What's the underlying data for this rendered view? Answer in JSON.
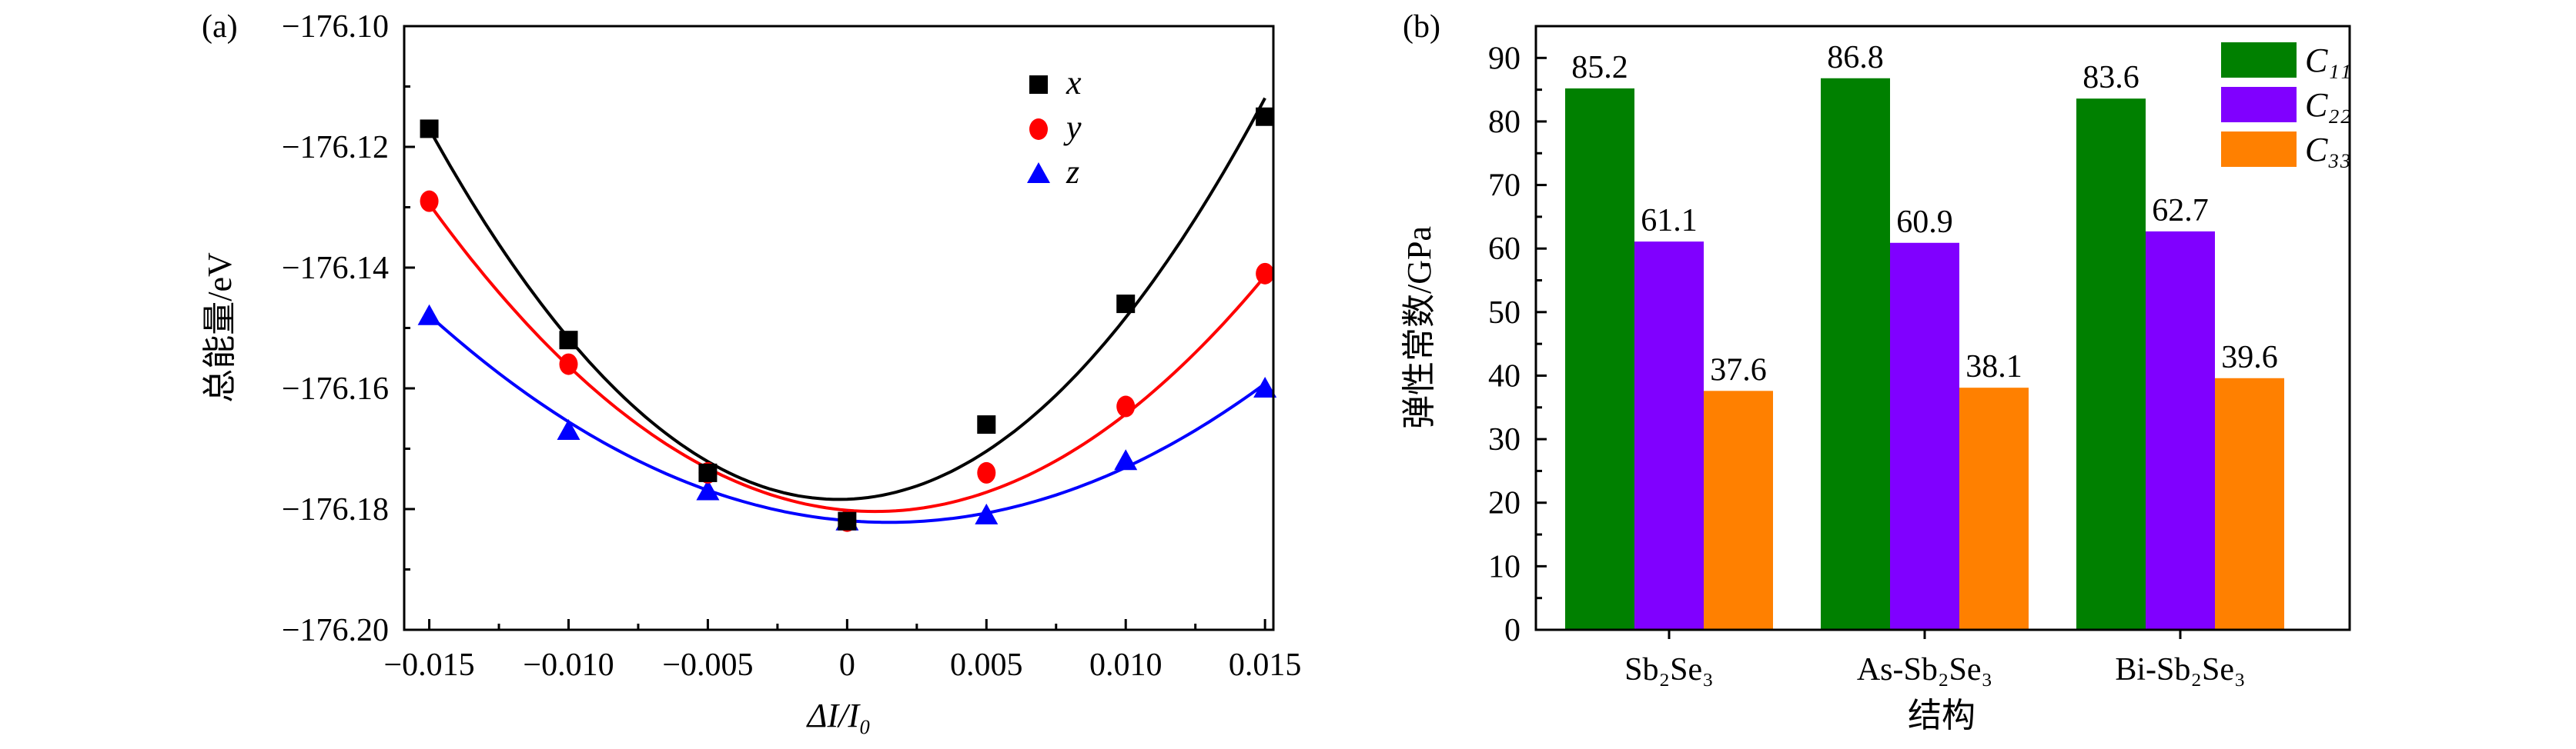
{
  "chart_data": [
    {
      "panel_label": "(a)",
      "type": "scatter",
      "xlabel": "ΔI/I₀",
      "ylabel": "总能量/eV",
      "xlim": [
        -0.0159,
        0.0153
      ],
      "ylim": [
        -176.2,
        -176.1
      ],
      "xticks": [
        -0.015,
        -0.01,
        -0.005,
        0,
        0.005,
        0.01,
        0.015
      ],
      "xtick_labels": [
        "−0.015",
        "−0.010",
        "−0.005",
        "0",
        "0.005",
        "0.010",
        "0.015"
      ],
      "yticks": [
        -176.1,
        -176.12,
        -176.14,
        -176.16,
        -176.18,
        -176.2
      ],
      "ytick_labels": [
        "−176.10",
        "−176.12",
        "−176.14",
        "−176.16",
        "−176.18",
        "−176.20"
      ],
      "grid": false,
      "legend_position": "top-right",
      "series": [
        {
          "name": "x",
          "color": "#000000",
          "marker": "square",
          "x": [
            -0.015,
            -0.01,
            -0.005,
            0,
            0.005,
            0.01,
            0.015
          ],
          "y": [
            -176.117,
            -176.152,
            -176.174,
            -176.182,
            -176.166,
            -176.146,
            -176.115
          ],
          "fit": {
            "type": "quadratic",
            "vertex": [
              -0.0003,
              -176.1784
            ],
            "a": 284
          }
        },
        {
          "name": "y",
          "color": "#ff0000",
          "marker": "circle",
          "x": [
            -0.015,
            -0.01,
            -0.005,
            0,
            0.005,
            0.01,
            0.015
          ],
          "y": [
            -176.129,
            -176.156,
            -176.174,
            -176.182,
            -176.174,
            -176.163,
            -176.141
          ],
          "fit": {
            "type": "quadratic",
            "vertex": [
              0.001,
              -176.1804
            ],
            "a": 199
          }
        },
        {
          "name": "z",
          "color": "#0000ff",
          "marker": "triangle",
          "x": [
            -0.015,
            -0.01,
            -0.005,
            0,
            0.005,
            0.01,
            0.015
          ],
          "y": [
            -176.148,
            -176.167,
            -176.177,
            -176.182,
            -176.181,
            -176.172,
            -176.16
          ],
          "fit": {
            "type": "quadratic",
            "vertex": [
              0.0015,
              -176.1822
            ],
            "a": 126
          }
        }
      ]
    },
    {
      "panel_label": "(b)",
      "type": "bar",
      "xlabel": "结构",
      "ylabel": "弹性常数/GPa",
      "ylim": [
        0,
        95
      ],
      "yticks": [
        0,
        10,
        20,
        30,
        40,
        50,
        60,
        70,
        80,
        90
      ],
      "grid": false,
      "legend_position": "top-right",
      "categories": [
        "Sb₂Se₃",
        "As-Sb₂Se₃",
        "Bi-Sb₂Se₃"
      ],
      "series": [
        {
          "name": "C₁₁",
          "color": "#008000",
          "values": [
            85.2,
            86.8,
            83.6
          ],
          "labels": [
            "85.2",
            "86.8",
            "83.6"
          ]
        },
        {
          "name": "C₂₂",
          "color": "#8000ff",
          "values": [
            61.1,
            60.9,
            62.7
          ],
          "labels": [
            "61.1",
            "60.9",
            "62.7"
          ]
        },
        {
          "name": "C₃₃",
          "color": "#ff8000",
          "values": [
            37.6,
            38.1,
            39.6
          ],
          "labels": [
            "37.6",
            "38.1",
            "39.6"
          ]
        }
      ]
    }
  ]
}
